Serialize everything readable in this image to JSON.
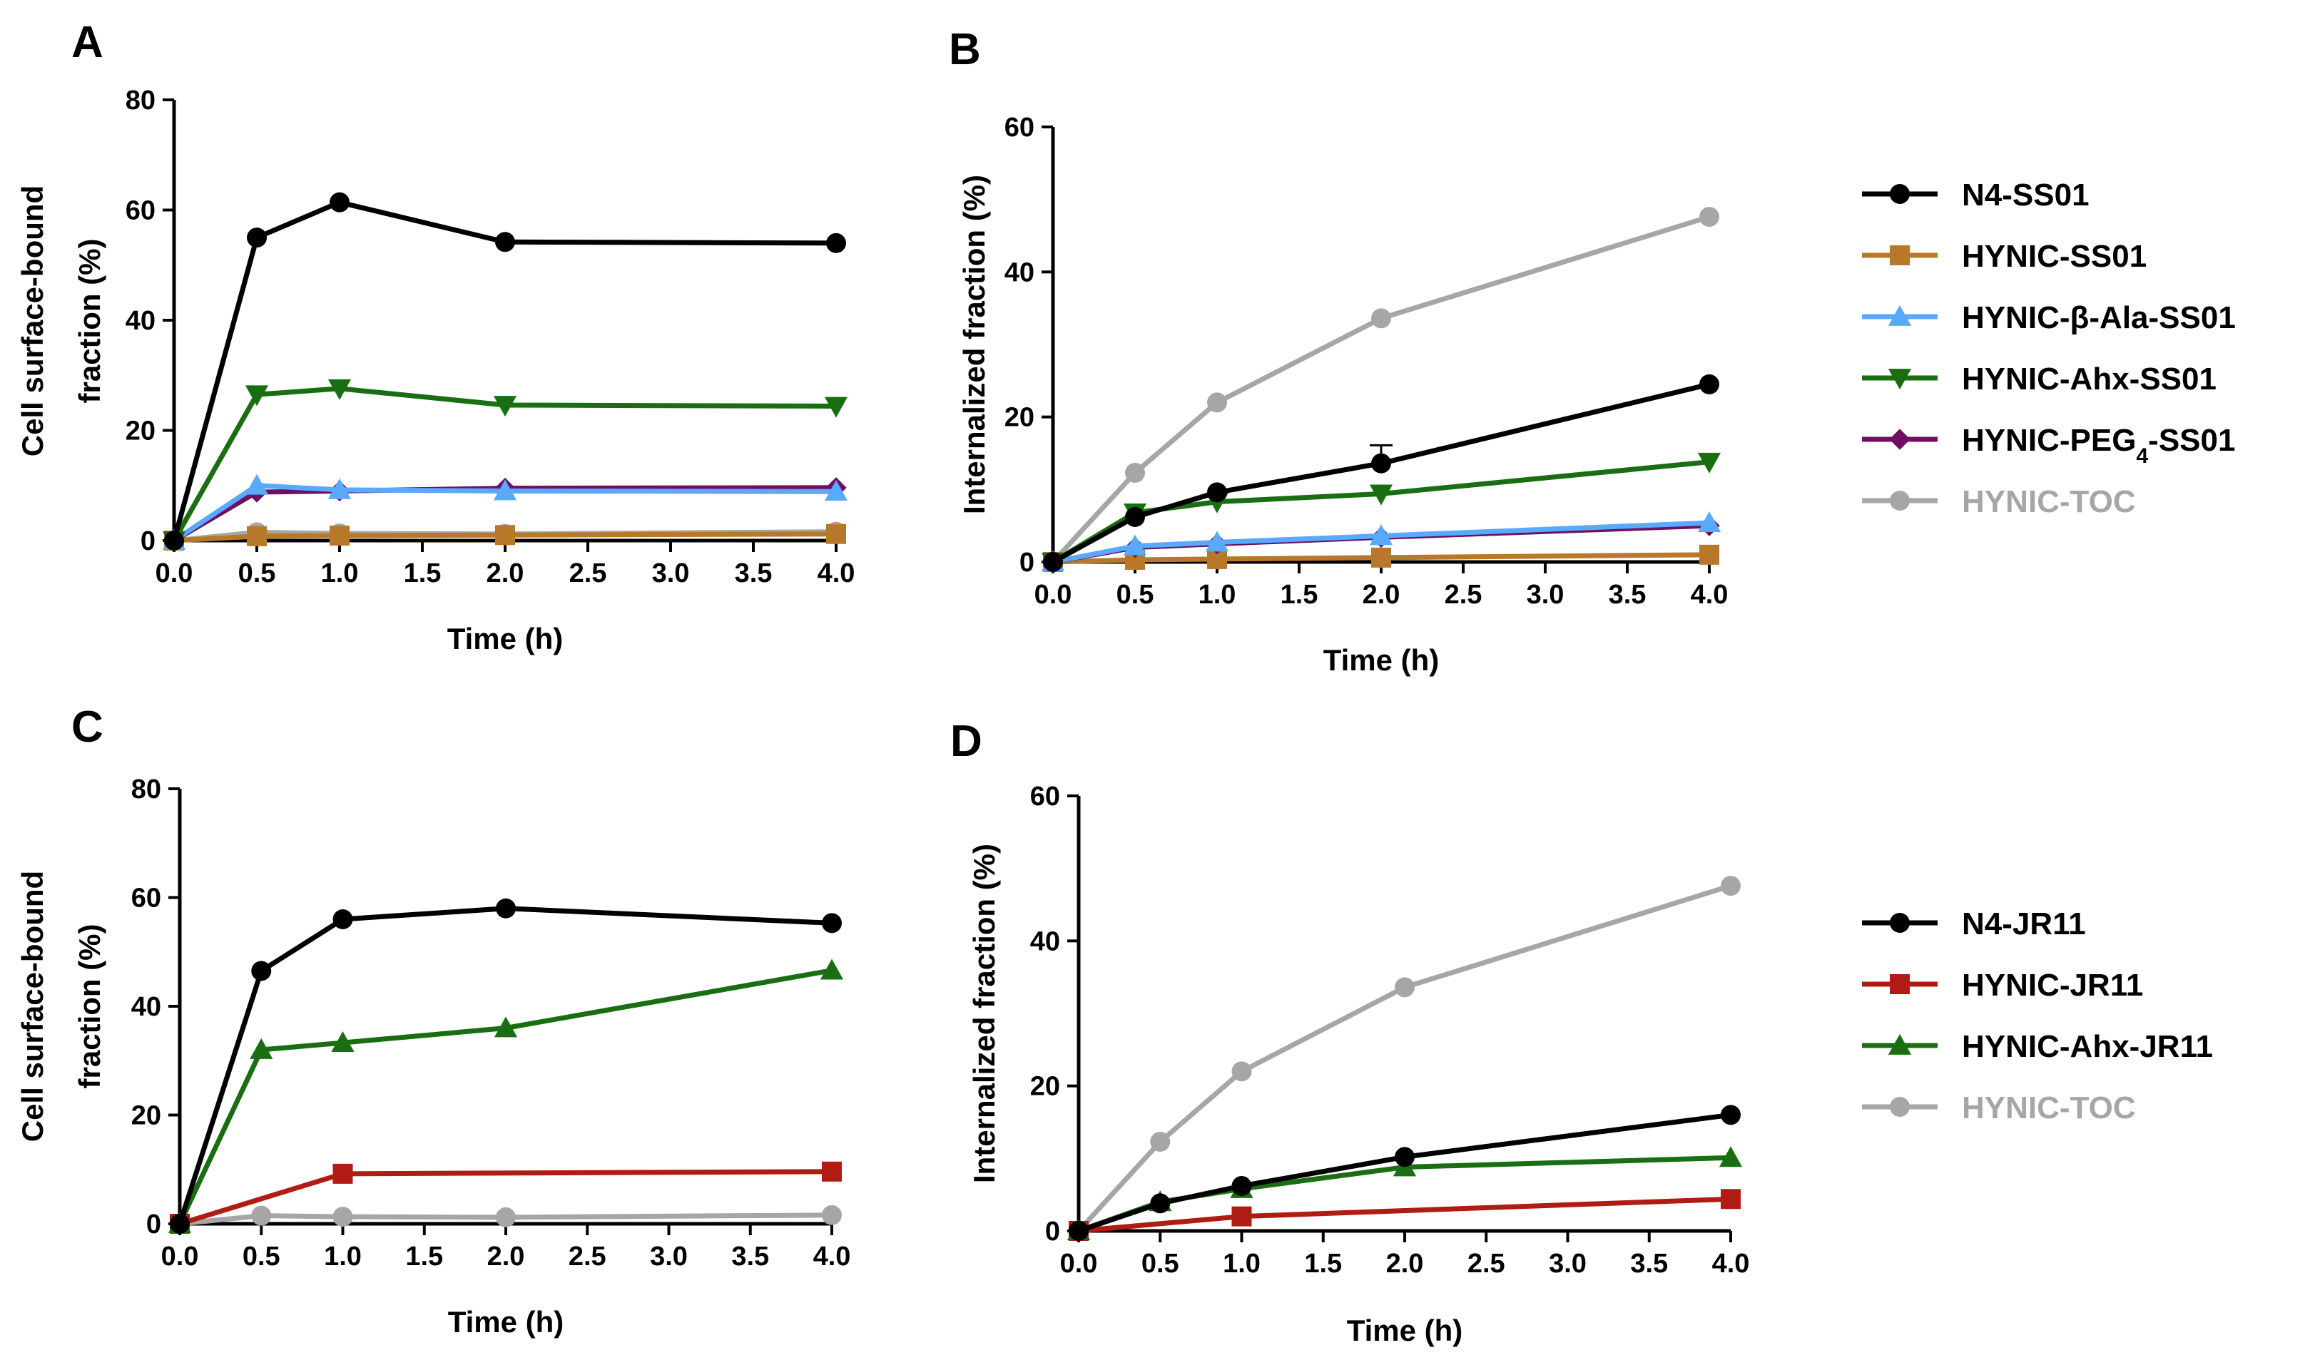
{
  "colors": {
    "N4-SS01": "#000000",
    "HYNIC-SS01": "#b8782a",
    "HYNIC-b-Ala-SS01": "#59a9ff",
    "HYNIC-Ahx-SS01": "#1a6e12",
    "HYNIC-PEG4-SS01": "#6f0f62",
    "HYNIC-TOC": "#a6a6a6",
    "N4-JR11": "#000000",
    "HYNIC-JR11": "#b01c14",
    "HYNIC-Ahx-JR11": "#1a6e12"
  },
  "chart_data": [
    {
      "id": "A",
      "panel_label": "A",
      "type": "line",
      "xlabel": "Time (h)",
      "ylabel_lines": [
        "Cell surface-bound",
        "fraction (%)"
      ],
      "xlim": [
        0,
        4
      ],
      "ylim": [
        0,
        80
      ],
      "xticks": [
        "0.0",
        "0.5",
        "1.0",
        "1.5",
        "2.0",
        "2.5",
        "3.0",
        "3.5",
        "4.0"
      ],
      "yticks": [
        "0",
        "20",
        "40",
        "60",
        "80"
      ],
      "x": [
        0,
        0.5,
        1,
        2,
        4
      ],
      "series": [
        {
          "name": "HYNIC-TOC",
          "marker": "circle",
          "color_key": "HYNIC-TOC",
          "values": [
            0,
            1.5,
            1.3,
            1.2,
            1.6
          ]
        },
        {
          "name": "HYNIC-SS01",
          "marker": "square",
          "color_key": "HYNIC-SS01",
          "values": [
            0,
            0.8,
            0.9,
            1.0,
            1.2
          ]
        },
        {
          "name": "HYNIC-PEG4-SS01",
          "marker": "diamond",
          "color_key": "HYNIC-PEG4-SS01",
          "values": [
            0,
            8.8,
            9.0,
            9.5,
            9.6
          ]
        },
        {
          "name": "HYNIC-β-Ala-SS01",
          "marker": "triangle-up",
          "color_key": "HYNIC-b-Ala-SS01",
          "values": [
            0,
            10.0,
            9.2,
            9.0,
            8.9
          ]
        },
        {
          "name": "HYNIC-Ahx-SS01",
          "marker": "triangle-down",
          "color_key": "HYNIC-Ahx-SS01",
          "values": [
            0,
            26.5,
            27.6,
            24.6,
            24.4
          ]
        },
        {
          "name": "N4-SS01",
          "marker": "circle",
          "color_key": "N4-SS01",
          "values": [
            0,
            55.0,
            61.4,
            54.2,
            54.0
          ]
        }
      ]
    },
    {
      "id": "B",
      "panel_label": "B",
      "type": "line",
      "xlabel": "Time (h)",
      "ylabel_lines": [
        "Internalized fraction (%)"
      ],
      "xlim": [
        0,
        4
      ],
      "ylim": [
        0,
        60
      ],
      "xticks": [
        "0.0",
        "0.5",
        "1.0",
        "1.5",
        "2.0",
        "2.5",
        "3.0",
        "3.5",
        "4.0"
      ],
      "yticks": [
        "0",
        "20",
        "40",
        "60"
      ],
      "x": [
        0,
        0.5,
        1,
        2,
        4
      ],
      "series": [
        {
          "name": "HYNIC-TOC",
          "marker": "circle",
          "color_key": "HYNIC-TOC",
          "values": [
            0,
            12.3,
            22.0,
            33.6,
            47.6
          ]
        },
        {
          "name": "HYNIC-SS01",
          "marker": "square",
          "color_key": "HYNIC-SS01",
          "values": [
            0,
            0.3,
            0.4,
            0.6,
            1.0
          ]
        },
        {
          "name": "HYNIC-PEG4-SS01",
          "marker": "diamond",
          "color_key": "HYNIC-PEG4-SS01",
          "values": [
            0,
            2.0,
            2.5,
            3.4,
            5.0
          ]
        },
        {
          "name": "HYNIC-β-Ala-SS01",
          "marker": "triangle-up",
          "color_key": "HYNIC-b-Ala-SS01",
          "values": [
            0,
            2.2,
            2.7,
            3.6,
            5.4
          ]
        },
        {
          "name": "HYNIC-Ahx-SS01",
          "marker": "triangle-down",
          "color_key": "HYNIC-Ahx-SS01",
          "values": [
            0,
            6.8,
            8.3,
            9.4,
            13.8
          ]
        },
        {
          "name": "N4-SS01",
          "marker": "circle",
          "color_key": "N4-SS01",
          "values": [
            0,
            6.2,
            9.6,
            13.6,
            24.5
          ],
          "error": [
            0,
            0,
            0,
            2.5,
            0
          ]
        }
      ]
    },
    {
      "id": "C",
      "panel_label": "C",
      "type": "line",
      "xlabel": "Time (h)",
      "ylabel_lines": [
        "Cell surface-bound",
        "fraction (%)"
      ],
      "xlim": [
        0,
        4
      ],
      "ylim": [
        0,
        80
      ],
      "xticks": [
        "0.0",
        "0.5",
        "1.0",
        "1.5",
        "2.0",
        "2.5",
        "3.0",
        "3.5",
        "4.0"
      ],
      "yticks": [
        "0",
        "20",
        "40",
        "60",
        "80"
      ],
      "x": [
        0,
        0.5,
        1,
        2,
        4
      ],
      "series": [
        {
          "name": "HYNIC-TOC",
          "marker": "circle",
          "color_key": "HYNIC-TOC",
          "values": [
            0,
            1.5,
            1.3,
            1.2,
            1.6
          ]
        },
        {
          "name": "HYNIC-JR11",
          "marker": "square",
          "color_key": "HYNIC-JR11",
          "values": [
            0,
            null,
            9.2,
            null,
            9.6
          ]
        },
        {
          "name": "HYNIC-Ahx-JR11",
          "marker": "triangle-up",
          "color_key": "HYNIC-Ahx-JR11",
          "values": [
            0,
            32.0,
            33.3,
            36.0,
            46.6
          ]
        },
        {
          "name": "N4-JR11",
          "marker": "circle",
          "color_key": "N4-JR11",
          "values": [
            0,
            46.5,
            56.0,
            58.0,
            55.3
          ]
        }
      ]
    },
    {
      "id": "D",
      "panel_label": "D",
      "type": "line",
      "xlabel": "Time (h)",
      "ylabel_lines": [
        "Internalized fraction (%)"
      ],
      "xlim": [
        0,
        4
      ],
      "ylim": [
        0,
        60
      ],
      "xticks": [
        "0.0",
        "0.5",
        "1.0",
        "1.5",
        "2.0",
        "2.5",
        "3.0",
        "3.5",
        "4.0"
      ],
      "yticks": [
        "0",
        "20",
        "40",
        "60"
      ],
      "x": [
        0,
        0.5,
        1,
        2,
        4
      ],
      "series": [
        {
          "name": "HYNIC-TOC",
          "marker": "circle",
          "color_key": "HYNIC-TOC",
          "values": [
            0,
            12.3,
            22.0,
            33.6,
            47.6
          ]
        },
        {
          "name": "HYNIC-JR11",
          "marker": "square",
          "color_key": "HYNIC-JR11",
          "values": [
            0,
            null,
            2.0,
            null,
            4.4
          ]
        },
        {
          "name": "HYNIC-Ahx-JR11",
          "marker": "triangle-up",
          "color_key": "HYNIC-Ahx-JR11",
          "values": [
            0,
            4.0,
            5.8,
            8.8,
            10.1
          ]
        },
        {
          "name": "N4-JR11",
          "marker": "circle",
          "color_key": "N4-JR11",
          "values": [
            0,
            3.8,
            6.2,
            10.2,
            16.0
          ]
        }
      ]
    }
  ],
  "legends": [
    {
      "id": "legend-top",
      "items": [
        {
          "label": "N4-SS01",
          "marker": "circle",
          "color_key": "N4-SS01",
          "text_color_key": "N4-SS01"
        },
        {
          "label": "HYNIC-SS01",
          "marker": "square",
          "color_key": "HYNIC-SS01",
          "text_color_key": "N4-SS01"
        },
        {
          "label": "HYNIC-β-Ala-SS01",
          "marker": "triangle-up",
          "color_key": "HYNIC-b-Ala-SS01",
          "text_color_key": "N4-SS01"
        },
        {
          "label": "HYNIC-Ahx-SS01",
          "marker": "triangle-down",
          "color_key": "HYNIC-Ahx-SS01",
          "text_color_key": "N4-SS01"
        },
        {
          "label": "HYNIC-PEG4-SS01",
          "label_base": "HYNIC-PEG",
          "label_sub": "4",
          "label_tail": "-SS01",
          "marker": "diamond",
          "color_key": "HYNIC-PEG4-SS01",
          "text_color_key": "N4-SS01"
        },
        {
          "label": "HYNIC-TOC",
          "marker": "circle",
          "color_key": "HYNIC-TOC",
          "text_color_key": "HYNIC-TOC"
        }
      ]
    },
    {
      "id": "legend-bottom",
      "items": [
        {
          "label": "N4-JR11",
          "marker": "circle",
          "color_key": "N4-JR11",
          "text_color_key": "N4-JR11"
        },
        {
          "label": "HYNIC-JR11",
          "marker": "square",
          "color_key": "HYNIC-JR11",
          "text_color_key": "N4-JR11"
        },
        {
          "label": "HYNIC-Ahx-JR11",
          "marker": "triangle-up",
          "color_key": "HYNIC-Ahx-JR11",
          "text_color_key": "N4-JR11"
        },
        {
          "label": "HYNIC-TOC",
          "marker": "circle",
          "color_key": "HYNIC-TOC",
          "text_color_key": "HYNIC-TOC"
        }
      ]
    }
  ]
}
